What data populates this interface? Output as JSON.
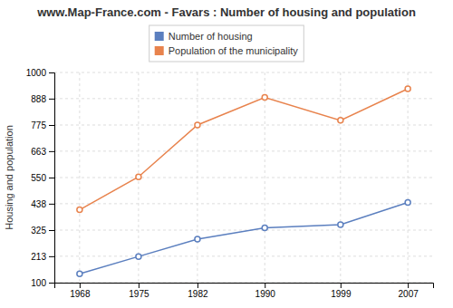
{
  "chart_data": {
    "type": "line",
    "title": "www.Map-France.com - Favars : Number of housing and population",
    "ylabel": "Housing and population",
    "x": [
      1968,
      1975,
      1982,
      1990,
      1999,
      2007
    ],
    "series": [
      {
        "name": "Number of housing",
        "color": "#5b7fbf",
        "marker": "circle",
        "values": [
          138,
          212,
          286,
          335,
          348,
          443
        ]
      },
      {
        "name": "Population of the municipality",
        "color": "#e8834d",
        "marker": "circle",
        "values": [
          412,
          553,
          775,
          893,
          795,
          930
        ]
      }
    ],
    "xlim": [
      1965,
      2010
    ],
    "xticks": [
      1968,
      1975,
      1982,
      1990,
      1999,
      2007
    ],
    "ylim": [
      100,
      1000
    ],
    "yticks": [
      100,
      213,
      325,
      438,
      550,
      663,
      775,
      888,
      1000
    ],
    "grid": true,
    "legend": "top"
  }
}
